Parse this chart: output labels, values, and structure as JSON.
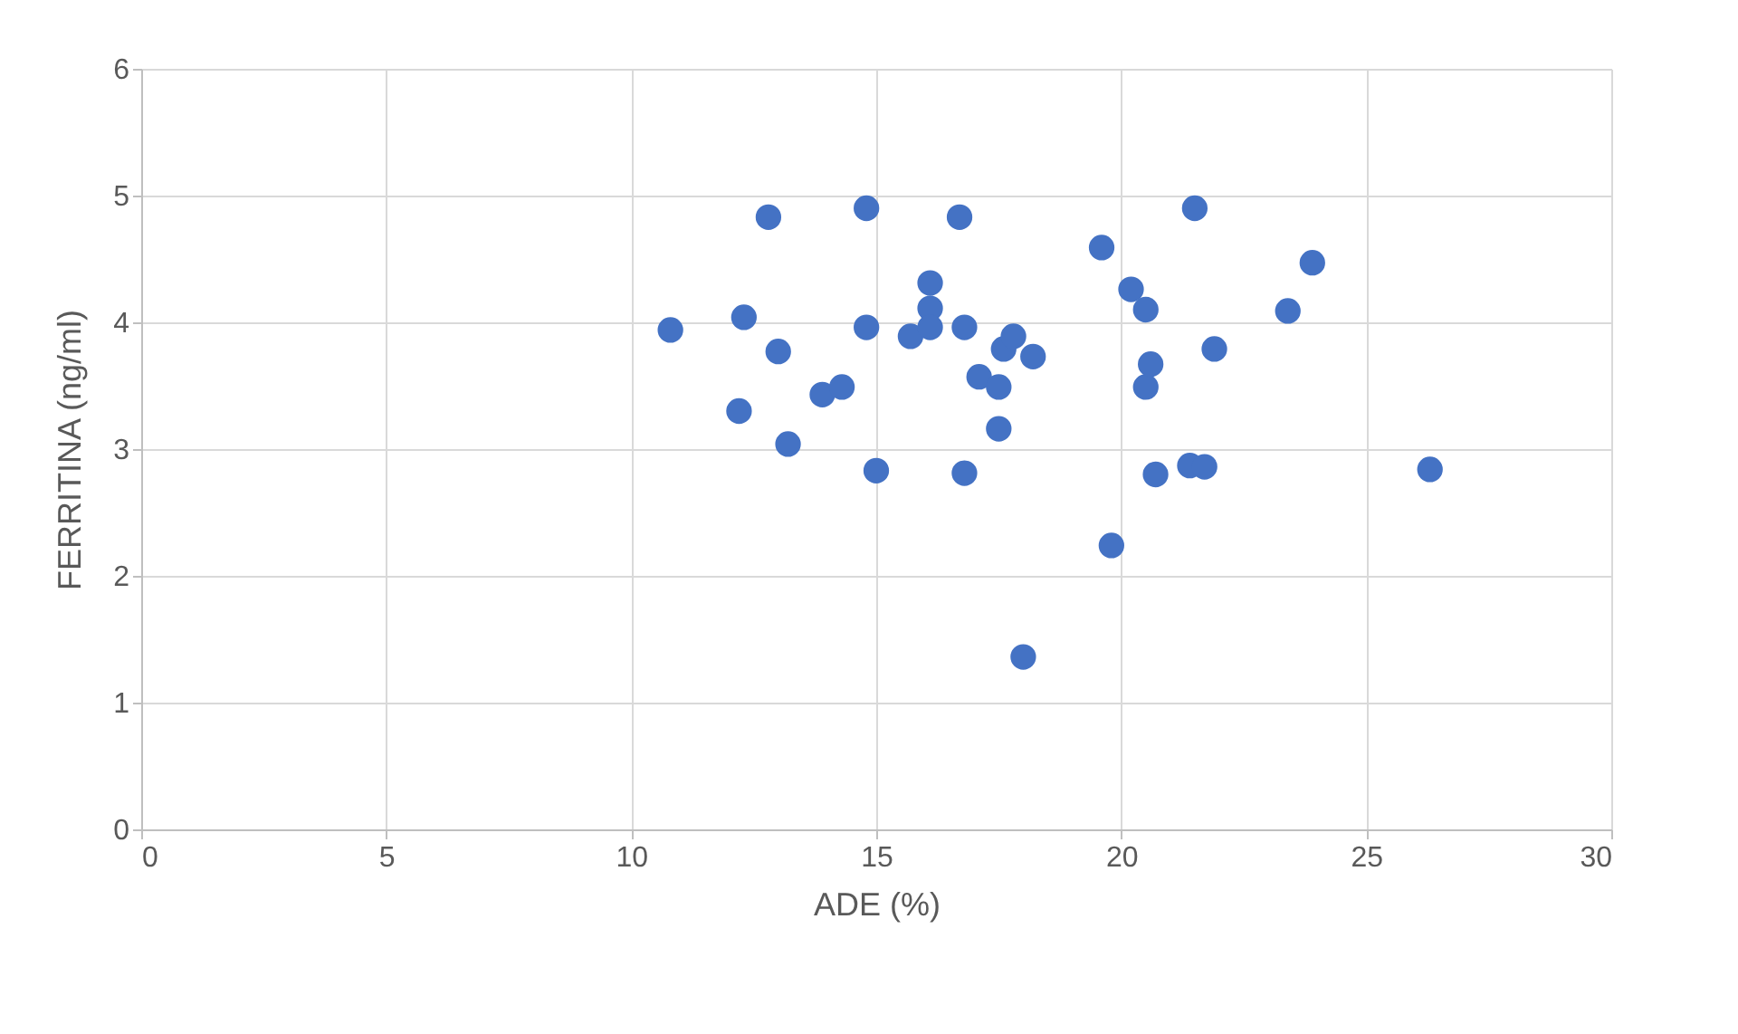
{
  "chart_data": {
    "type": "scatter",
    "xlabel": "ADE (%)",
    "ylabel": "FERRITINA (ng/ml)",
    "x": [
      10.8,
      12.3,
      12.2,
      12.8,
      13.0,
      13.2,
      13.9,
      14.3,
      15.0,
      14.8,
      14.8,
      15.7,
      16.1,
      16.1,
      16.1,
      16.7,
      16.8,
      16.8,
      17.1,
      17.5,
      17.5,
      17.6,
      17.8,
      18.0,
      18.2,
      19.6,
      19.8,
      20.2,
      20.5,
      20.5,
      20.6,
      20.7,
      21.5,
      21.4,
      21.7,
      21.9,
      23.4,
      23.9,
      26.3
    ],
    "series": [
      {
        "color": "#4472c4",
        "values": [
          3.94,
          4.04,
          3.3,
          4.83,
          3.77,
          3.04,
          3.43,
          3.49,
          2.83,
          4.9,
          3.96,
          3.89,
          4.31,
          4.11,
          3.96,
          4.83,
          2.81,
          3.96,
          3.57,
          3.16,
          3.49,
          3.79,
          3.89,
          1.36,
          3.73,
          4.59,
          2.24,
          4.26,
          4.1,
          3.49,
          3.67,
          2.8,
          4.9,
          2.87,
          2.86,
          3.79,
          4.09,
          4.47,
          2.84
        ]
      }
    ],
    "xlim": [
      0,
      30
    ],
    "xticks": [
      0,
      5,
      10,
      15,
      20,
      25,
      30
    ],
    "ylim": [
      0,
      6
    ],
    "yticks": [
      0,
      1,
      2,
      3,
      4,
      5,
      6
    ],
    "grid": true,
    "marker": "circle"
  }
}
